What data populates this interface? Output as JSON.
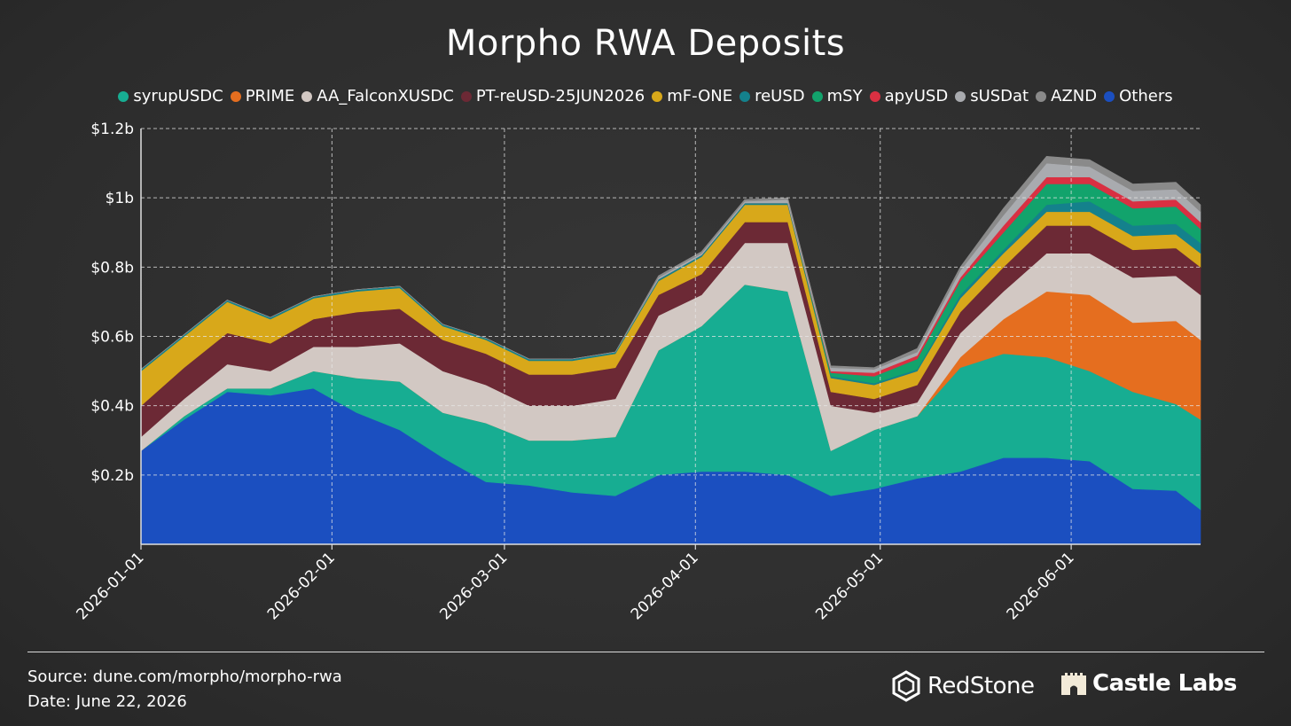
{
  "title": "Morpho RWA Deposits",
  "footer": {
    "source": "Source: dune.com/morpho/morpho-rwa",
    "date": "Date: June 22, 2026"
  },
  "brands": {
    "redstone": "RedStone",
    "castle": "Castle Labs"
  },
  "chart_data": {
    "type": "area",
    "stacked": true,
    "title": "Morpho RWA Deposits",
    "xlabel": "",
    "ylabel": "",
    "x_range": [
      "2026-01-01",
      "2026-06-22"
    ],
    "ylim": [
      0,
      1.2
    ],
    "y_unit": "billion USD",
    "y_ticks": [
      0.2,
      0.4,
      0.6,
      0.8,
      1.0,
      1.2
    ],
    "y_tick_labels": [
      "$0.2b",
      "$0.4b",
      "$0.6b",
      "$0.8b",
      "$1b",
      "$1.2b"
    ],
    "x_ticks": [
      "2026-01-01",
      "2026-02-01",
      "2026-03-01",
      "2026-04-01",
      "2026-05-01",
      "2026-06-01"
    ],
    "grid": true,
    "legend_position": "top-center",
    "x": [
      "2026-01-01",
      "2026-01-08",
      "2026-01-15",
      "2026-01-22",
      "2026-01-29",
      "2026-02-05",
      "2026-02-12",
      "2026-02-19",
      "2026-02-26",
      "2026-03-05",
      "2026-03-12",
      "2026-03-19",
      "2026-03-26",
      "2026-04-02",
      "2026-04-09",
      "2026-04-16",
      "2026-04-23",
      "2026-04-30",
      "2026-05-07",
      "2026-05-14",
      "2026-05-21",
      "2026-05-28",
      "2026-06-04",
      "2026-06-11",
      "2026-06-18",
      "2026-06-22"
    ],
    "series": [
      {
        "name": "Others",
        "color": "#1b4fc0",
        "values": [
          0.27,
          0.36,
          0.44,
          0.43,
          0.45,
          0.38,
          0.33,
          0.25,
          0.18,
          0.17,
          0.15,
          0.14,
          0.2,
          0.21,
          0.21,
          0.2,
          0.14,
          0.16,
          0.19,
          0.21,
          0.25,
          0.25,
          0.24,
          0.16,
          0.155,
          0.1
        ]
      },
      {
        "name": "syrupUSDC",
        "color": "#17ad92",
        "values": [
          0,
          0.01,
          0.01,
          0.02,
          0.05,
          0.1,
          0.14,
          0.13,
          0.17,
          0.13,
          0.15,
          0.17,
          0.36,
          0.42,
          0.54,
          0.53,
          0.13,
          0.17,
          0.18,
          0.3,
          0.3,
          0.29,
          0.26,
          0.28,
          0.25,
          0.26
        ]
      },
      {
        "name": "PRIME",
        "color": "#e56e1f",
        "values": [
          0,
          0,
          0,
          0,
          0,
          0,
          0,
          0,
          0,
          0,
          0,
          0,
          0,
          0,
          0,
          0,
          0,
          0,
          0,
          0.03,
          0.1,
          0.19,
          0.22,
          0.2,
          0.24,
          0.23
        ]
      },
      {
        "name": "AA_FalconXUSDC",
        "color": "#d2c8c3",
        "values": [
          0.04,
          0.05,
          0.07,
          0.05,
          0.07,
          0.09,
          0.11,
          0.12,
          0.11,
          0.1,
          0.1,
          0.11,
          0.1,
          0.09,
          0.12,
          0.14,
          0.13,
          0.05,
          0.04,
          0.07,
          0.08,
          0.11,
          0.12,
          0.13,
          0.13,
          0.13
        ]
      },
      {
        "name": "PT-reUSD-25JUN2026",
        "color": "#6c2935",
        "values": [
          0.09,
          0.09,
          0.09,
          0.08,
          0.08,
          0.1,
          0.1,
          0.09,
          0.09,
          0.09,
          0.09,
          0.09,
          0.06,
          0.06,
          0.06,
          0.06,
          0.04,
          0.04,
          0.05,
          0.06,
          0.07,
          0.08,
          0.08,
          0.08,
          0.08,
          0.08
        ]
      },
      {
        "name": "mF-ONE",
        "color": "#d8a81a",
        "values": [
          0.1,
          0.09,
          0.09,
          0.07,
          0.06,
          0.06,
          0.06,
          0.04,
          0.04,
          0.04,
          0.04,
          0.04,
          0.04,
          0.05,
          0.05,
          0.05,
          0.04,
          0.04,
          0.04,
          0.04,
          0.04,
          0.04,
          0.04,
          0.04,
          0.04,
          0.04
        ]
      },
      {
        "name": "reUSD",
        "color": "#14818c",
        "values": [
          0.005,
          0.005,
          0.005,
          0.005,
          0.005,
          0.005,
          0.005,
          0.005,
          0.005,
          0.005,
          0.005,
          0.005,
          0.005,
          0.005,
          0.005,
          0.005,
          0.005,
          0.005,
          0.005,
          0.01,
          0.01,
          0.02,
          0.03,
          0.03,
          0.03,
          0.03
        ]
      },
      {
        "name": "mSY",
        "color": "#12a36c",
        "values": [
          0,
          0,
          0,
          0,
          0,
          0,
          0,
          0,
          0,
          0,
          0,
          0,
          0,
          0,
          0,
          0,
          0.01,
          0.02,
          0.03,
          0.04,
          0.05,
          0.06,
          0.05,
          0.05,
          0.05,
          0.04
        ]
      },
      {
        "name": "apyUSD",
        "color": "#d93042",
        "values": [
          0,
          0,
          0,
          0,
          0,
          0,
          0,
          0,
          0,
          0,
          0,
          0,
          0,
          0,
          0,
          0,
          0.005,
          0.01,
          0.01,
          0.01,
          0.02,
          0.02,
          0.02,
          0.02,
          0.02,
          0.02
        ]
      },
      {
        "name": "sUSDat",
        "color": "#a9abaf",
        "values": [
          0,
          0,
          0,
          0,
          0,
          0,
          0,
          0,
          0,
          0,
          0,
          0,
          0.005,
          0.005,
          0.005,
          0.01,
          0.01,
          0.01,
          0.01,
          0.02,
          0.03,
          0.04,
          0.03,
          0.03,
          0.03,
          0.03
        ]
      },
      {
        "name": "AZND",
        "color": "#8a8a8a",
        "values": [
          0,
          0,
          0,
          0,
          0,
          0,
          0,
          0,
          0,
          0,
          0,
          0,
          0.005,
          0.005,
          0.005,
          0.005,
          0.005,
          0.005,
          0.01,
          0.01,
          0.02,
          0.02,
          0.02,
          0.02,
          0.02,
          0.02
        ]
      }
    ],
    "legend_order": [
      "syrupUSDC",
      "PRIME",
      "AA_FalconXUSDC",
      "PT-reUSD-25JUN2026",
      "mF-ONE",
      "reUSD",
      "mSY",
      "apyUSD",
      "sUSDat",
      "AZND",
      "Others"
    ]
  }
}
